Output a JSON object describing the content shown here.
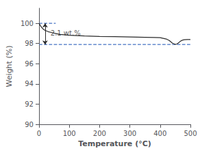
{
  "chart_data": {
    "type": "line",
    "xlabel": "Temperature (°C)",
    "ylabel": "Weight (%)",
    "x": [
      0,
      2,
      5,
      10,
      15,
      20,
      30,
      40,
      50,
      70,
      100,
      150,
      200,
      250,
      300,
      350,
      380,
      400,
      410,
      420,
      430,
      440,
      445,
      450,
      455,
      460,
      465,
      470,
      475,
      480,
      490,
      500
    ],
    "values": [
      100.0,
      99.9,
      99.75,
      99.55,
      99.4,
      99.3,
      99.18,
      99.1,
      99.02,
      98.9,
      98.82,
      98.75,
      98.7,
      98.68,
      98.65,
      98.62,
      98.6,
      98.58,
      98.52,
      98.45,
      98.3,
      98.05,
      97.98,
      97.92,
      97.95,
      98.05,
      98.18,
      98.28,
      98.35,
      98.38,
      98.4,
      98.4
    ],
    "color": "#2a2a2a",
    "xlim": [
      0,
      500
    ],
    "ylim": [
      90,
      101.5
    ],
    "xticks": [
      0,
      100,
      200,
      300,
      400,
      500
    ],
    "yticks": [
      90,
      92,
      94,
      96,
      98,
      100
    ],
    "grid": false,
    "reference_lines": [
      {
        "y": 100.0,
        "x": [
          0,
          55
        ],
        "color": "#4472c4",
        "line_style": "dashed"
      },
      {
        "y": 97.9,
        "x": [
          0,
          500
        ],
        "color": "#4472c4",
        "line_style": "dashed"
      }
    ],
    "arrow": {
      "x": 20,
      "from": 100.0,
      "to": 97.9,
      "color": "#2a2a2a"
    },
    "annotations": [
      {
        "text": "2.1 wt.%",
        "x": 38,
        "y": 99.0,
        "color": "#2a2a2a"
      }
    ]
  }
}
